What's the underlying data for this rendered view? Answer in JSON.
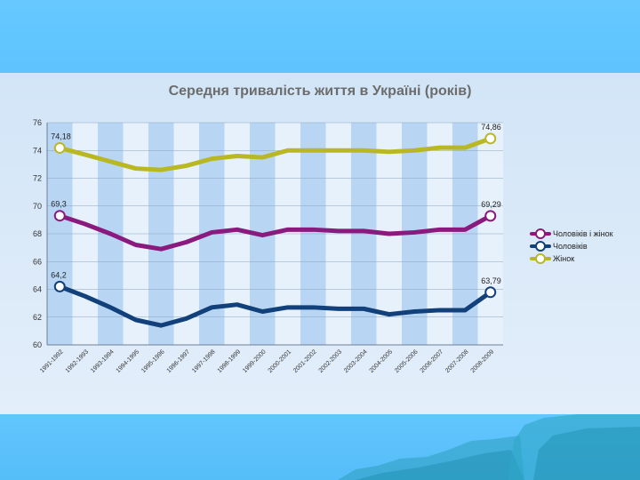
{
  "chart_data": {
    "type": "line",
    "title": "Середня тривалість життя в Україні (років)",
    "xlabel": "",
    "ylabel": "",
    "ylim": [
      60,
      76
    ],
    "yticks": [
      "60",
      "62",
      "64",
      "66",
      "68",
      "70",
      "72",
      "74",
      "76"
    ],
    "categories": [
      "1991-1992",
      "1992-1993",
      "1993-1994",
      "1994-1995",
      "1995-1996",
      "1996-1997",
      "1997-1998",
      "1998-1999",
      "1999-2000",
      "2000-2001",
      "2001-2002",
      "2002-2003",
      "2003-2004",
      "2004-2005",
      "2005-2006",
      "2006-2007",
      "2007-2008",
      "2008-2009"
    ],
    "legend_position": "right",
    "series": [
      {
        "name": "Чоловіків і жінок",
        "color": "#8a1a7e",
        "values": [
          69.3,
          68.7,
          68.0,
          67.2,
          66.9,
          67.4,
          68.1,
          68.3,
          67.9,
          68.3,
          68.3,
          68.2,
          68.2,
          68.0,
          68.1,
          68.3,
          68.3,
          69.29
        ],
        "start_label": "69,3",
        "end_label": "69,29"
      },
      {
        "name": "Чоловіків",
        "color": "#12407a",
        "values": [
          64.2,
          63.5,
          62.7,
          61.8,
          61.4,
          61.9,
          62.7,
          62.9,
          62.4,
          62.7,
          62.7,
          62.6,
          62.6,
          62.2,
          62.4,
          62.5,
          62.5,
          63.79
        ],
        "start_label": "64,2",
        "end_label": "63,79"
      },
      {
        "name": "Жінок",
        "color": "#b9b822",
        "values": [
          74.18,
          73.7,
          73.2,
          72.7,
          72.6,
          72.9,
          73.4,
          73.6,
          73.5,
          74.0,
          74.0,
          74.0,
          74.0,
          73.9,
          74.0,
          74.2,
          74.2,
          74.86
        ],
        "start_label": "74,18",
        "end_label": "74,86"
      }
    ]
  }
}
